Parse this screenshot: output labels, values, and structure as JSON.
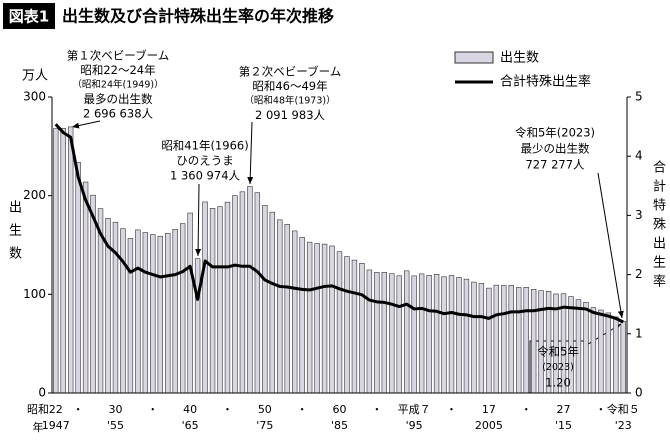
{
  "chart_data": {
    "type": "bar_line",
    "title_tag": "図表1",
    "title": "出生数及び合計特殊出生率の年次推移",
    "y_unit_label": "万人",
    "y_label": "出生数",
    "y2_label": "合計特殊出生率",
    "x_era_label": "昭和",
    "x_unit_label": "年",
    "categories": [
      "22",
      null,
      null,
      "・",
      null,
      null,
      null,
      null,
      "30",
      null,
      null,
      null,
      null,
      "・",
      null,
      null,
      null,
      null,
      "40",
      null,
      null,
      null,
      null,
      "・",
      null,
      null,
      null,
      null,
      "50",
      null,
      null,
      null,
      null,
      "・",
      null,
      null,
      null,
      null,
      "60",
      null,
      null,
      null,
      null,
      "・",
      null,
      null,
      null,
      null,
      "平成７",
      null,
      null,
      null,
      null,
      "・",
      null,
      null,
      null,
      null,
      "17",
      null,
      null,
      null,
      null,
      "・",
      null,
      null,
      null,
      null,
      "27",
      null,
      null,
      null,
      null,
      "・",
      null,
      null,
      "令和５"
    ],
    "x_year_labels": [
      "1947",
      null,
      null,
      null,
      null,
      null,
      null,
      null,
      "'55",
      null,
      null,
      null,
      null,
      null,
      null,
      null,
      null,
      null,
      "'65",
      null,
      null,
      null,
      null,
      null,
      null,
      null,
      null,
      null,
      "'75",
      null,
      null,
      null,
      null,
      null,
      null,
      null,
      null,
      null,
      "'85",
      null,
      null,
      null,
      null,
      null,
      null,
      null,
      null,
      null,
      "'95",
      null,
      null,
      null,
      null,
      null,
      null,
      null,
      null,
      null,
      "2005",
      null,
      null,
      null,
      null,
      null,
      null,
      null,
      null,
      null,
      "'15",
      null,
      null,
      null,
      null,
      null,
      null,
      null,
      "'23"
    ],
    "series": [
      {
        "name": "出生数",
        "color": "#d9d5e3",
        "values": [
          267.9,
          268.2,
          269.7,
          233.8,
          213.8,
          200.5,
          186.8,
          177.0,
          173.1,
          166.5,
          156.7,
          165.3,
          162.6,
          160.6,
          158.9,
          161.9,
          165.9,
          171.7,
          182.4,
          136.1,
          193.6,
          187.2,
          188.9,
          193.4,
          200.1,
          203.9,
          209.2,
          203.0,
          190.1,
          183.3,
          175.5,
          170.9,
          164.3,
          157.7,
          152.9,
          151.5,
          150.9,
          149.0,
          143.2,
          138.3,
          134.7,
          131.4,
          124.7,
          122.2,
          122.3,
          120.9,
          118.8,
          123.8,
          118.7,
          120.7,
          119.2,
          120.3,
          117.8,
          119.1,
          117.1,
          115.4,
          112.4,
          111.1,
          106.3,
          109.3,
          109.0,
          109.1,
          107.0,
          107.1,
          105.1,
          103.7,
          103.0,
          100.4,
          100.6,
          97.7,
          94.6,
          91.8,
          86.5,
          84.1,
          81.2,
          77.1,
          72.7
        ]
      },
      {
        "name": "合計特殊出生率",
        "color": "#000000",
        "axis": "y2",
        "values": [
          4.54,
          4.4,
          4.32,
          3.65,
          3.26,
          2.98,
          2.69,
          2.48,
          2.37,
          2.22,
          2.04,
          2.11,
          2.04,
          2.0,
          1.96,
          1.98,
          2.0,
          2.05,
          2.14,
          1.58,
          2.23,
          2.13,
          2.13,
          2.13,
          2.16,
          2.14,
          2.14,
          2.05,
          1.91,
          1.85,
          1.8,
          1.79,
          1.77,
          1.75,
          1.74,
          1.77,
          1.8,
          1.81,
          1.76,
          1.72,
          1.69,
          1.66,
          1.57,
          1.54,
          1.53,
          1.5,
          1.46,
          1.5,
          1.42,
          1.43,
          1.39,
          1.38,
          1.34,
          1.36,
          1.33,
          1.32,
          1.29,
          1.29,
          1.26,
          1.32,
          1.34,
          1.37,
          1.37,
          1.39,
          1.39,
          1.41,
          1.43,
          1.42,
          1.45,
          1.44,
          1.43,
          1.42,
          1.36,
          1.33,
          1.3,
          1.26,
          1.2
        ]
      }
    ],
    "ylim": [
      0,
      300
    ],
    "yticks": [
      0,
      100,
      200,
      300
    ],
    "y2lim": [
      0,
      5
    ],
    "y2ticks": [
      0,
      1,
      2,
      3,
      4,
      5
    ],
    "annotations": [
      [
        "第１次ベビーブーム",
        "昭和22～24年",
        "（昭和24年(1949)）",
        "最多の出生数",
        "2 696 638人"
      ],
      [
        "第２次ベビーブーム",
        "昭和46～49年",
        "（昭和48年(1973)）",
        "2 091 983人"
      ],
      [
        "昭和41年(1966)",
        "ひのえうま",
        "1 360 974人"
      ],
      [
        "令和5年(2023)",
        "最少の出生数",
        "727 277人"
      ],
      [
        "令和5年",
        "(2023)",
        "1.20"
      ]
    ]
  }
}
